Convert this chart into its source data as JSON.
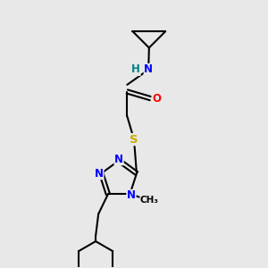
{
  "bg_color": "#e8e8e8",
  "atom_colors": {
    "C": "#000000",
    "N": "#0000ff",
    "O": "#ff0000",
    "S": "#ccaa00",
    "H": "#008080"
  },
  "figsize": [
    3.0,
    3.0
  ],
  "dpi": 100
}
